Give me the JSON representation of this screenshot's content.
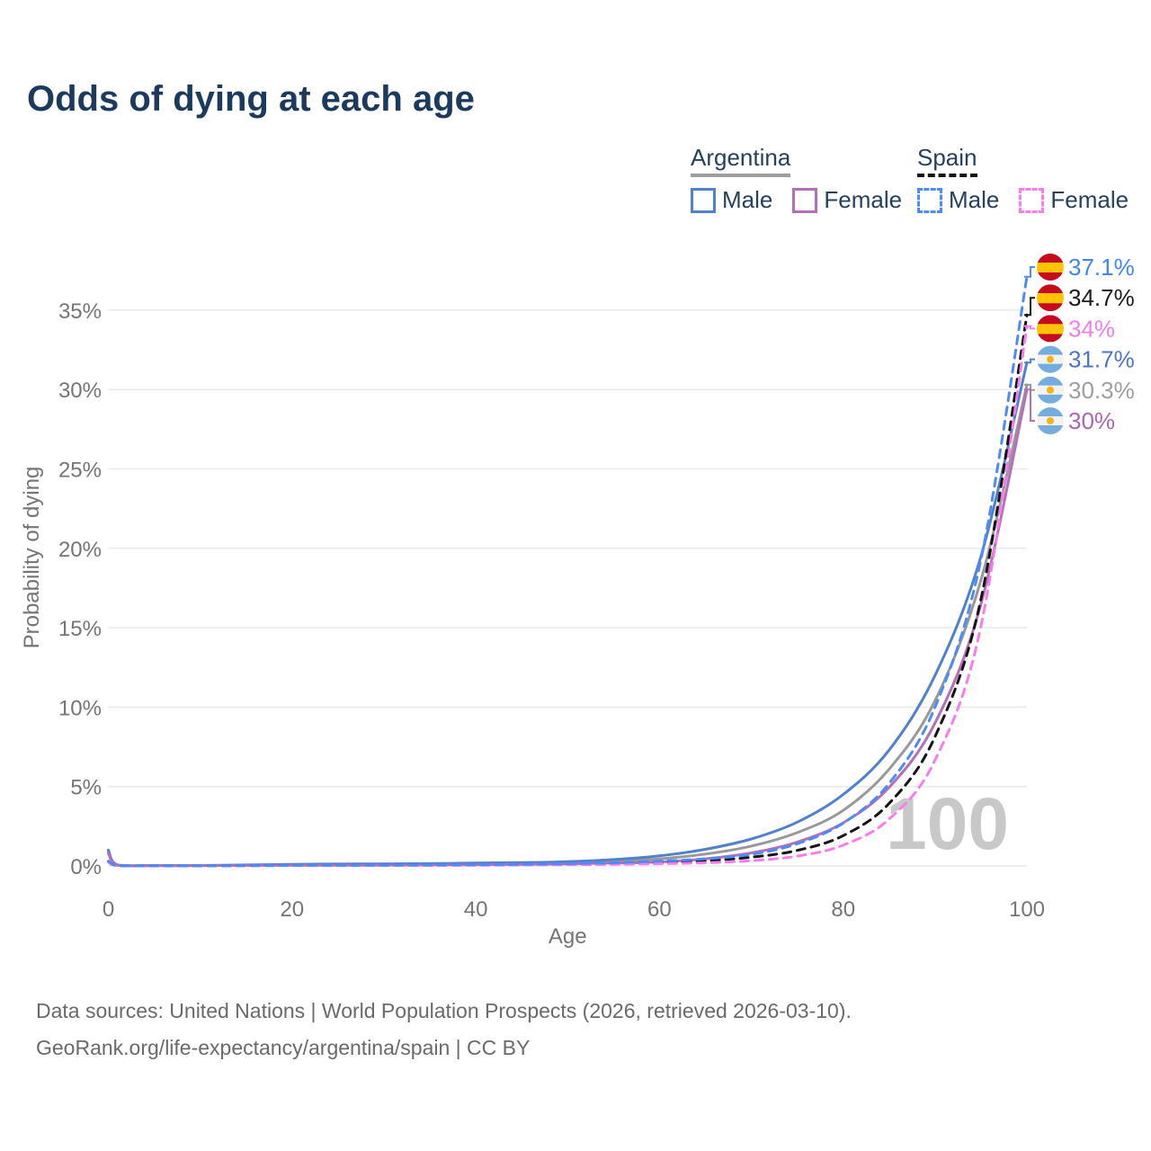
{
  "title": "Odds of dying at each age",
  "legend": {
    "argentina": {
      "label": "Argentina",
      "male": "Male",
      "female": "Female"
    },
    "spain": {
      "label": "Spain",
      "male": "Male",
      "female": "Female"
    }
  },
  "chart_data": {
    "type": "line",
    "title": "Odds of dying at each age",
    "xlabel": "Age",
    "ylabel": "Probability of dying",
    "watermark": "100",
    "xlim": [
      0,
      100
    ],
    "ylim": [
      0,
      38
    ],
    "x_ticks": [
      0,
      20,
      40,
      60,
      80,
      100
    ],
    "y_ticks": [
      0,
      5,
      10,
      15,
      20,
      25,
      30,
      35
    ],
    "y_tick_suffix": "%",
    "grid": "horizontal",
    "legend_position": "top-right",
    "x": [
      0,
      1,
      5,
      10,
      15,
      20,
      25,
      30,
      35,
      40,
      45,
      50,
      55,
      60,
      65,
      70,
      75,
      80,
      85,
      90,
      95,
      100
    ],
    "series": [
      {
        "key": "ar_total",
        "name": "Argentina — Total",
        "country": "Argentina",
        "sex": "total",
        "color": "#999999",
        "dashed": false,
        "flag": "argentina",
        "end_label": "30.3%",
        "label_color": "#9e9e9e",
        "values": [
          0.9,
          0.05,
          0.02,
          0.02,
          0.05,
          0.07,
          0.08,
          0.09,
          0.11,
          0.13,
          0.15,
          0.2,
          0.29,
          0.45,
          0.75,
          1.25,
          2.1,
          3.5,
          6.1,
          10.4,
          18.0,
          30.3
        ]
      },
      {
        "key": "ar_male",
        "name": "Argentina — Male",
        "country": "Argentina",
        "sex": "male",
        "color": "#5081cc",
        "dashed": false,
        "flag": "argentina",
        "end_label": "31.7%",
        "label_color": "#4c74c8",
        "values": [
          1.0,
          0.06,
          0.03,
          0.03,
          0.06,
          0.1,
          0.12,
          0.13,
          0.15,
          0.18,
          0.21,
          0.27,
          0.4,
          0.64,
          1.05,
          1.7,
          2.76,
          4.5,
          7.3,
          12.0,
          19.5,
          31.7
        ]
      },
      {
        "key": "ar_female",
        "name": "Argentina — Female",
        "country": "Argentina",
        "sex": "female",
        "color": "#b46fb8",
        "dashed": false,
        "flag": "argentina",
        "end_label": "30%",
        "label_color": "#b063b0",
        "values": [
          0.8,
          0.05,
          0.02,
          0.02,
          0.03,
          0.04,
          0.04,
          0.05,
          0.06,
          0.08,
          0.1,
          0.13,
          0.18,
          0.25,
          0.45,
          0.82,
          1.5,
          2.72,
          4.95,
          9.0,
          16.5,
          30.0
        ]
      },
      {
        "key": "es_total",
        "name": "Spain — Total",
        "country": "Spain",
        "sex": "total",
        "color": "#141414",
        "dashed": true,
        "flag": "spain",
        "end_label": "34.7%",
        "label_color": "#1c1c1c",
        "values": [
          0.28,
          0.02,
          0.01,
          0.01,
          0.02,
          0.03,
          0.03,
          0.04,
          0.05,
          0.06,
          0.08,
          0.1,
          0.15,
          0.22,
          0.33,
          0.55,
          0.98,
          1.91,
          3.94,
          8.14,
          16.8,
          34.7
        ]
      },
      {
        "key": "es_female",
        "name": "Spain — Female",
        "country": "Spain",
        "sex": "female",
        "color": "#f87cee",
        "dashed": true,
        "flag": "spain",
        "end_label": "34%",
        "label_color": "#f07cf0",
        "values": [
          0.25,
          0.02,
          0.01,
          0.01,
          0.01,
          0.02,
          0.02,
          0.03,
          0.03,
          0.04,
          0.06,
          0.08,
          0.1,
          0.14,
          0.2,
          0.33,
          0.62,
          1.31,
          2.95,
          6.66,
          15.1,
          34.0
        ]
      },
      {
        "key": "es_male",
        "name": "Spain — Male",
        "country": "Spain",
        "sex": "male",
        "color": "#4c8cf8",
        "dashed": true,
        "flag": "spain",
        "end_label": "37.1%",
        "label_color": "#3e86f4",
        "values": [
          0.3,
          0.03,
          0.01,
          0.01,
          0.02,
          0.04,
          0.04,
          0.05,
          0.06,
          0.08,
          0.1,
          0.14,
          0.2,
          0.3,
          0.45,
          0.73,
          1.4,
          2.7,
          5.2,
          10.0,
          19.3,
          37.1
        ]
      }
    ],
    "flag_colors": {
      "spain_red": "#c60b1e",
      "spain_yellow": "#ffc400",
      "argentina_blue": "#74acdf",
      "argentina_white": "#f2f2f2",
      "argentina_sun": "#f6b40e"
    },
    "axis_text_color": "#757575",
    "grid_color": "#e9e9e9",
    "watermark_color": "#c8c8c8"
  },
  "footer": {
    "line1": "Data sources: United Nations | World Population Prospects (2026, retrieved 2026-03-10).",
    "line2": "GeoRank.org/life-expectancy/argentina/spain | CC BY"
  }
}
